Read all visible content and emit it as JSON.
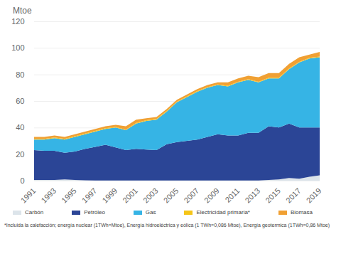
{
  "chart_data": {
    "type": "area",
    "stacked": true,
    "y_label": "Mtoe",
    "caption": "*Incluida la calefacción; energía nuclear (1TWh=Mtoe), Energía hidroeléctrica y eólica (1 TWh=0,086 Mtoe), Energía geotermica (1TWh=0,86 Mtoe)",
    "x": [
      1991,
      1992,
      1993,
      1994,
      1995,
      1996,
      1997,
      1998,
      1999,
      2000,
      2001,
      2002,
      2003,
      2004,
      2005,
      2006,
      2007,
      2008,
      2009,
      2010,
      2011,
      2012,
      2013,
      2014,
      2015,
      2016,
      2017,
      2018,
      2019
    ],
    "xlim": [
      1991,
      2019
    ],
    "xticks": [
      1991,
      1993,
      1995,
      1997,
      1999,
      2001,
      2003,
      2005,
      2007,
      2009,
      2011,
      2013,
      2015,
      2017,
      2019
    ],
    "ylim": [
      0,
      120
    ],
    "yticks": [
      0,
      20,
      40,
      60,
      80,
      100,
      120
    ],
    "grid": true,
    "legend": "bottom",
    "series": [
      {
        "name": "Carbón",
        "color": "#dce4ea",
        "values": [
          0.5,
          0.5,
          0.5,
          1,
          0.5,
          0.3,
          0.2,
          0.2,
          0.2,
          0.2,
          0.2,
          0.2,
          0.2,
          0.2,
          0.2,
          0.2,
          0.2,
          0.2,
          0.2,
          0.2,
          0.2,
          0.2,
          0.2,
          0.5,
          1,
          2,
          1.5,
          3,
          4
        ]
      },
      {
        "name": "Petróleo",
        "color": "#2b4596",
        "values": [
          22.5,
          22,
          22,
          20,
          21.5,
          23.7,
          25.3,
          26.8,
          24.8,
          22.8,
          23.8,
          23.3,
          22.8,
          27.3,
          28.8,
          29.8,
          30.8,
          32.8,
          34.8,
          33.8,
          33.8,
          35.8,
          35.8,
          40.5,
          39,
          41,
          38.5,
          37,
          36
        ]
      },
      {
        "name": "Gas",
        "color": "#36b4e5",
        "values": [
          8,
          8.5,
          9.5,
          10,
          11,
          11,
          11.5,
          12,
          15,
          15,
          19,
          21.5,
          23,
          24.5,
          30,
          33,
          36,
          37,
          37,
          37,
          40,
          40,
          38,
          36,
          37,
          41,
          49,
          52,
          53
        ]
      },
      {
        "name": "Electricidad primaria*",
        "color": "#f5c518",
        "values": [
          0.5,
          0.5,
          0.5,
          0.5,
          0.5,
          0.5,
          0.5,
          0.5,
          0.5,
          0.5,
          0.5,
          0.5,
          0.5,
          0.5,
          0.5,
          0.5,
          0.5,
          0.5,
          0.5,
          0.5,
          0.5,
          0.5,
          0.5,
          0.5,
          0.5,
          0.5,
          0.5,
          0.5,
          0.5
        ]
      },
      {
        "name": "Biomasa",
        "color": "#f0a033",
        "values": [
          1.5,
          1.5,
          1.5,
          1.5,
          1.5,
          1.5,
          1.5,
          1.5,
          1.5,
          2.5,
          2.5,
          1.5,
          1.5,
          1.5,
          1.5,
          1.5,
          1.5,
          1.5,
          1.5,
          2.5,
          2.5,
          2.5,
          3.5,
          3.5,
          3.5,
          3.5,
          3.5,
          2.5,
          3.5
        ]
      }
    ]
  }
}
